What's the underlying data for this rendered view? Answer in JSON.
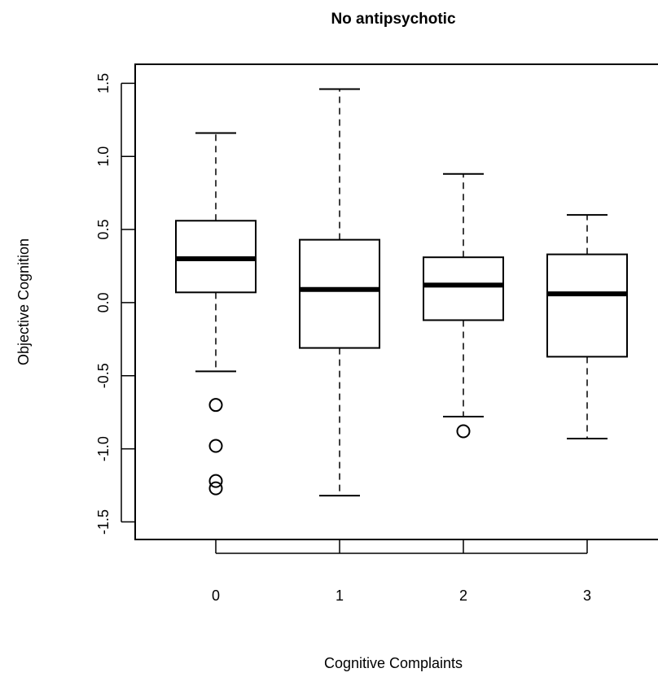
{
  "chart_data": {
    "type": "boxplot",
    "title": "No antipsychotic",
    "xlabel": "Cognitive Complaints",
    "ylabel": "Objective Cognition",
    "categories": [
      "0",
      "1",
      "2",
      "3"
    ],
    "ylim": [
      -1.62,
      1.63
    ],
    "yticks": [
      -1.5,
      -1.0,
      -0.5,
      0.0,
      0.5,
      1.0,
      1.5
    ],
    "ytick_labels": [
      "-1.5",
      "-1.0",
      "-0.5",
      "0.0",
      "0.5",
      "1.0",
      "1.5"
    ],
    "grid": false,
    "boxes": [
      {
        "category": "0",
        "whisker_low": -0.47,
        "q1": 0.07,
        "median": 0.3,
        "q3": 0.56,
        "whisker_high": 1.16,
        "outliers": [
          -0.7,
          -0.98,
          -1.22,
          -1.27
        ]
      },
      {
        "category": "1",
        "whisker_low": -1.32,
        "q1": -0.31,
        "median": 0.09,
        "q3": 0.43,
        "whisker_high": 1.46,
        "outliers": []
      },
      {
        "category": "2",
        "whisker_low": -0.78,
        "q1": -0.12,
        "median": 0.12,
        "q3": 0.31,
        "whisker_high": 0.88,
        "outliers": [
          -0.88
        ]
      },
      {
        "category": "3",
        "whisker_low": -0.93,
        "q1": -0.37,
        "median": 0.06,
        "q3": 0.33,
        "whisker_high": 0.6,
        "outliers": []
      }
    ]
  }
}
